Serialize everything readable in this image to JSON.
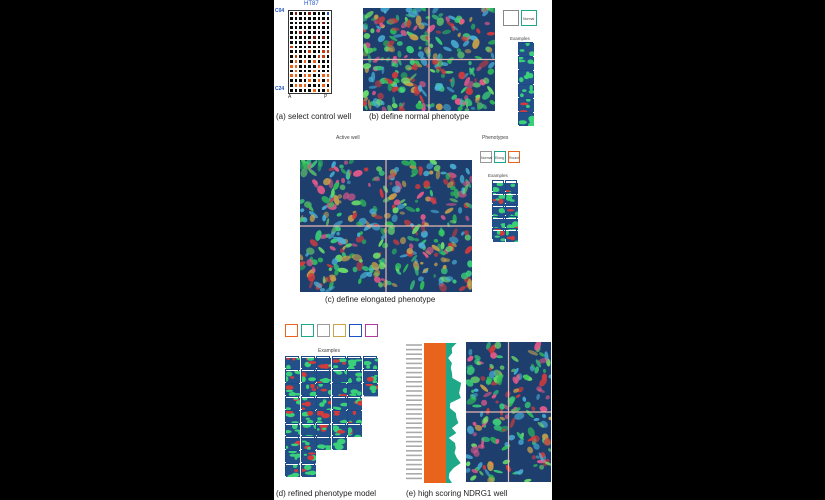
{
  "panels": {
    "a": {
      "caption": "(a) select control well",
      "plate_title": "HT87",
      "row_top": "C04",
      "row_bottom": "C24",
      "col_left": "A",
      "col_right": "P"
    },
    "b": {
      "caption": "(b) define normal phenotype",
      "phenotype_label": "Normal",
      "examples_label": "Examples"
    },
    "c": {
      "caption": "(c) define elongated phenotype",
      "header_left": "Active well",
      "phenotypes_label": "Phenotypes",
      "phenotype_normal": "Normal",
      "phenotype_elongated": "Elong.",
      "phenotype_round": "Round",
      "examples_label": "Examples"
    },
    "d": {
      "caption": "(d) refined phenotype model",
      "examples_label": "Examples"
    },
    "e": {
      "caption": "(e) high scoring NDRG1 well"
    }
  },
  "colors": {
    "accent_blue": "#1b4fc4",
    "orange": "#e8641c",
    "teal": "#1fa887",
    "micro_bg": "#1e3f6e"
  }
}
